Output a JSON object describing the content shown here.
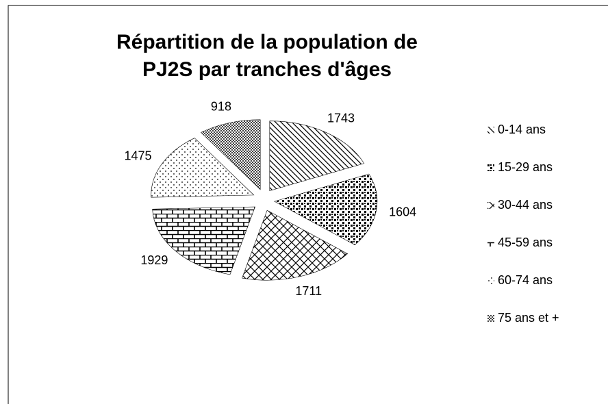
{
  "chart_data": {
    "type": "pie",
    "title": "Répartition de la population de PJ2S par tranches d'âges",
    "categories": [
      "0-14 ans",
      "15-29 ans",
      "30-44 ans",
      "45-59 ans",
      "60-74 ans",
      "75 ans et +"
    ],
    "values": [
      1743,
      1604,
      1711,
      1929,
      1475,
      918
    ],
    "patterns": [
      "diagonal",
      "dots",
      "crosshatch",
      "brick",
      "sparse-dots",
      "checker"
    ],
    "exploded": true,
    "legend": "right"
  }
}
